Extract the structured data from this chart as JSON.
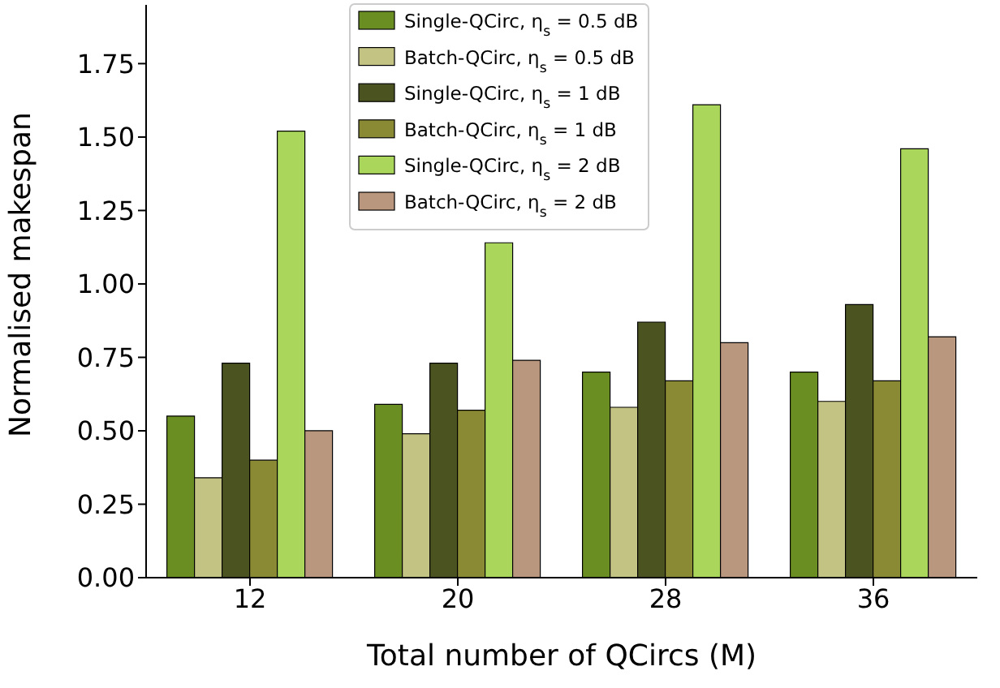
{
  "chart_data": {
    "type": "bar",
    "xlabel": "Total number of QCircs (M)",
    "ylabel": "Normalised makespan",
    "categories": [
      "12",
      "20",
      "28",
      "36"
    ],
    "series": [
      {
        "name": "Single-QCirc, η$_{s}$ = 0.5 dB",
        "color": "#6b8e23",
        "values": [
          0.55,
          0.59,
          0.7,
          0.7
        ]
      },
      {
        "name": "Batch-QCirc, η$_{s}$ = 0.5 dB",
        "color": "#c3c383",
        "values": [
          0.34,
          0.49,
          0.58,
          0.6
        ]
      },
      {
        "name": "Single-QCirc, η$_{s}$ = 1 dB",
        "color": "#4b5320",
        "values": [
          0.73,
          0.73,
          0.87,
          0.93
        ]
      },
      {
        "name": "Batch-QCirc, η$_{s}$ = 1 dB",
        "color": "#8a8a35",
        "values": [
          0.4,
          0.57,
          0.67,
          0.67
        ]
      },
      {
        "name": "Single-QCirc, η$_{s}$ = 2 dB",
        "color": "#a9d65b",
        "values": [
          1.52,
          1.14,
          1.61,
          1.46
        ]
      },
      {
        "name": "Batch-QCirc, η$_{s}$ = 2 dB",
        "color": "#b9977f",
        "values": [
          0.5,
          0.74,
          0.8,
          0.82
        ]
      }
    ],
    "ylim": [
      0,
      1.95
    ],
    "yticks": [
      {
        "value": 0,
        "label": "0.00"
      },
      {
        "value": 0.25,
        "label": "0.25"
      },
      {
        "value": 0.5,
        "label": "0.50"
      },
      {
        "value": 0.75,
        "label": "0.75"
      },
      {
        "value": 1,
        "label": "1.00"
      },
      {
        "value": 1.25,
        "label": "1.25"
      },
      {
        "value": 1.5,
        "label": "1.50"
      },
      {
        "value": 1.75,
        "label": "1.75"
      }
    ],
    "grid": false,
    "legend": "top"
  }
}
